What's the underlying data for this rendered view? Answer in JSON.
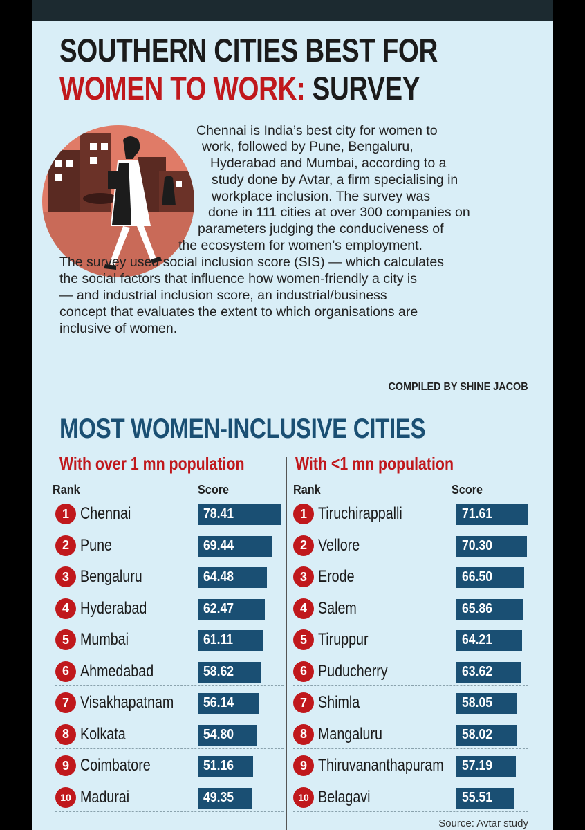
{
  "title_line1": "SOUTHERN CITIES BEST FOR",
  "title_line2_red": "WOMEN TO WORK:",
  "title_line2_black": "SURVEY",
  "intro_lines": [
    "Chennai is India’s best city for women to",
    "work, followed by Pune, Bengaluru,",
    "Hyderabad and Mumbai, according to a",
    "study done by Avtar, a firm specialising in",
    "workplace inclusion. The survey was",
    "done in 111 cities at over 300 companies on",
    "parameters judging the conduciveness of",
    "the ecosystem for women’s employment.",
    "The survey used social inclusion score (SIS) — which calculates",
    "the social factors that influence how women-friendly a city is",
    "— and industrial inclusion score, an industrial/business",
    "concept that evaluates the extent to which organisations are",
    "inclusive of women."
  ],
  "credit": "COMPILED BY SHINE JACOB",
  "subhead": "MOST WOMEN-INCLUSIVE CITIES",
  "rank_label": "Rank",
  "score_label": "Score",
  "source": "Source: Avtar study",
  "colors": {
    "accent_red": "#c0181c",
    "bar_blue": "#1a4f73",
    "background": "#d9eef7"
  },
  "chart_data": [
    {
      "type": "bar",
      "title": "With over 1 mn population",
      "categories": [
        "Chennai",
        "Pune",
        "Bengaluru",
        "Hyderabad",
        "Mumbai",
        "Ahmedabad",
        "Visakhapatnam",
        "Kolkata",
        "Coimbatore",
        "Madurai"
      ],
      "ranks": [
        "1",
        "2",
        "3",
        "4",
        "5",
        "6",
        "7",
        "8",
        "9",
        "10"
      ],
      "values": [
        78.41,
        69.44,
        64.48,
        62.47,
        61.11,
        58.62,
        56.14,
        54.8,
        51.16,
        49.35
      ],
      "value_labels": [
        "78.41",
        "69.44",
        "64.48",
        "62.47",
        "61.11",
        "58.62",
        "56.14",
        "54.80",
        "51.16",
        "49.35"
      ]
    },
    {
      "type": "bar",
      "title": "With <1 mn population",
      "categories": [
        "Tiruchirappalli",
        "Vellore",
        "Erode",
        "Salem",
        "Tiruppur",
        "Puducherry",
        "Shimla",
        "Mangaluru",
        "Thiruvananthapuram",
        "Belagavi"
      ],
      "ranks": [
        "1",
        "2",
        "3",
        "4",
        "5",
        "6",
        "7",
        "8",
        "9",
        "10"
      ],
      "values": [
        71.61,
        70.3,
        66.5,
        65.86,
        64.21,
        63.62,
        58.05,
        58.02,
        57.19,
        55.51
      ],
      "value_labels": [
        "71.61",
        "70.30",
        "66.50",
        "65.86",
        "64.21",
        "63.62",
        "58.05",
        "58.02",
        "57.19",
        "55.51"
      ]
    }
  ]
}
